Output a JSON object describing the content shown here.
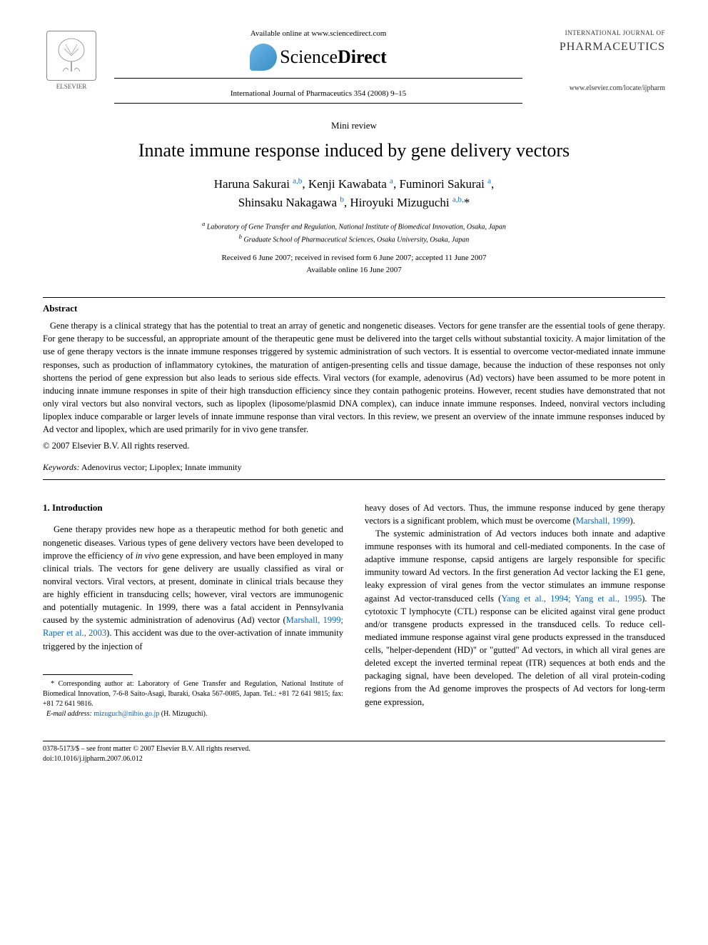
{
  "header": {
    "elsevier_label": "ELSEVIER",
    "available_online": "Available online at www.sciencedirect.com",
    "sd_brand_prefix": "Science",
    "sd_brand_suffix": "Direct",
    "journal_ref": "International Journal of Pharmaceutics 354 (2008) 9–15",
    "ijp_label": "INTERNATIONAL JOURNAL OF",
    "ijp_title": "PHARMACEUTICS",
    "locate_url": "www.elsevier.com/locate/ijpharm"
  },
  "article": {
    "type": "Mini review",
    "title": "Innate immune response induced by gene delivery vectors",
    "authors_line1_html": "Haruna Sakurai <sup>a,b</sup>, Kenji Kawabata <sup>a</sup>, Fuminori Sakurai <sup>a</sup>,",
    "authors_line2_html": "Shinsaku Nakagawa <sup>b</sup>, Hiroyuki Mizuguchi <sup>a,b,</sup>*",
    "affiliation_a": "a Laboratory of Gene Transfer and Regulation, National Institute of Biomedical Innovation, Osaka, Japan",
    "affiliation_b": "b Graduate School of Pharmaceutical Sciences, Osaka University, Osaka, Japan",
    "dates_line1": "Received 6 June 2007; received in revised form 6 June 2007; accepted 11 June 2007",
    "dates_line2": "Available online 16 June 2007"
  },
  "abstract": {
    "heading": "Abstract",
    "text": "Gene therapy is a clinical strategy that has the potential to treat an array of genetic and nongenetic diseases. Vectors for gene transfer are the essential tools of gene therapy. For gene therapy to be successful, an appropriate amount of the therapeutic gene must be delivered into the target cells without substantial toxicity. A major limitation of the use of gene therapy vectors is the innate immune responses triggered by systemic administration of such vectors. It is essential to overcome vector-mediated innate immune responses, such as production of inflammatory cytokines, the maturation of antigen-presenting cells and tissue damage, because the induction of these responses not only shortens the period of gene expression but also leads to serious side effects. Viral vectors (for example, adenovirus (Ad) vectors) have been assumed to be more potent in inducing innate immune responses in spite of their high transduction efficiency since they contain pathogenic proteins. However, recent studies have demonstrated that not only viral vectors but also nonviral vectors, such as lipoplex (liposome/plasmid DNA complex), can induce innate immune responses. Indeed, nonviral vectors including lipoplex induce comparable or larger levels of innate immune response than viral vectors. In this review, we present an overview of the innate immune responses induced by Ad vector and lipoplex, which are used primarily for in vivo gene transfer.",
    "copyright": "© 2007 Elsevier B.V. All rights reserved.",
    "keywords_label": "Keywords:",
    "keywords_text": " Adenovirus vector; Lipoplex; Innate immunity"
  },
  "body": {
    "section1_heading": "1. Introduction",
    "col1_p1_html": "Gene therapy provides new hope as a therapeutic method for both genetic and nongenetic diseases. Various types of gene delivery vectors have been developed to improve the efficiency of <i>in vivo</i> gene expression, and have been employed in many clinical trials. The vectors for gene delivery are usually classified as viral or nonviral vectors. Viral vectors, at present, dominate in clinical trials because they are highly efficient in transducing cells; however, viral vectors are immunogenic and potentially mutagenic. In 1999, there was a fatal accident in Pennsylvania caused by the systemic administration of adenovirus (Ad) vector (<span class=\"link\">Marshall, 1999; Raper et al., 2003</span>). This accident was due to the over-activation of innate immunity triggered by the injection of",
    "col2_p1_html": "heavy doses of Ad vectors. Thus, the immune response induced by gene therapy vectors is a significant problem, which must be overcome (<span class=\"link\">Marshall, 1999</span>).",
    "col2_p2_html": "The systemic administration of Ad vectors induces both innate and adaptive immune responses with its humoral and cell-mediated components. In the case of adaptive immune response, capsid antigens are largely responsible for specific immunity toward Ad vectors. In the first generation Ad vector lacking the E1 gene, leaky expression of viral genes from the vector stimulates an immune response against Ad vector-transduced cells (<span class=\"link\">Yang et al., 1994; Yang et al., 1995</span>). The cytotoxic T lymphocyte (CTL) response can be elicited against viral gene product and/or transgene products expressed in the transduced cells. To reduce cell-mediated immune response against viral gene products expressed in the transduced cells, \"helper-dependent (HD)\" or \"gutted\" Ad vectors, in which all viral genes are deleted except the inverted terminal repeat (ITR) sequences at both ends and the packaging signal, have been developed. The deletion of all viral protein-coding regions from the Ad genome improves the prospects of Ad vectors for long-term gene expression,"
  },
  "footnote": {
    "corresponding": "* Corresponding author at: Laboratory of Gene Transfer and Regulation, National Institute of Biomedical Innovation, 7-6-8 Saito-Asagi, Ibaraki, Osaka 567-0085, Japan. Tel.: +81 72 641 9815; fax: +81 72 641 9816.",
    "email_label": "E-mail address:",
    "email": " mizuguch@nibio.go.jp",
    "email_author": " (H. Mizuguchi)."
  },
  "footer": {
    "line1": "0378-5173/$ – see front matter © 2007 Elsevier B.V. All rights reserved.",
    "line2": "doi:10.1016/j.ijpharm.2007.06.012"
  },
  "colors": {
    "link": "#0066cc",
    "text": "#000000",
    "sd_gradient_start": "#6bb6e8",
    "sd_gradient_end": "#3a8cc4"
  }
}
